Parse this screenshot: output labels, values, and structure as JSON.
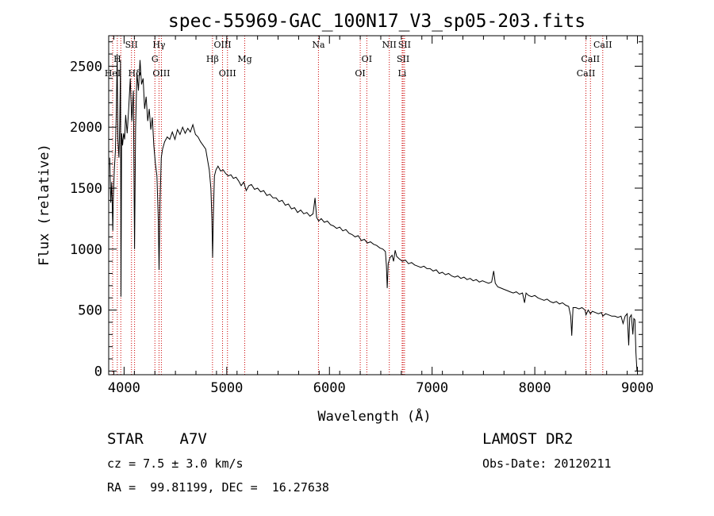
{
  "chart_data": {
    "type": "line",
    "title": "spec-55969-GAC_100N17_V3_sp05-203.fits",
    "xlabel": "Wavelength (Å)",
    "ylabel": "Flux (relative)",
    "xlim": [
      3850,
      9050
    ],
    "ylim": [
      -30,
      2750
    ],
    "xticks": [
      4000,
      5000,
      6000,
      7000,
      8000,
      9000
    ],
    "yticks": [
      0,
      500,
      1000,
      1500,
      2000,
      2500
    ],
    "series_color": "#000000",
    "line_color": "#cc0000",
    "series": [
      {
        "points": [
          [
            3860,
            1750
          ],
          [
            3870,
            1380
          ],
          [
            3880,
            1550
          ],
          [
            3890,
            1150
          ],
          [
            3895,
            1400
          ],
          [
            3905,
            1650
          ],
          [
            3915,
            1800
          ],
          [
            3925,
            2150
          ],
          [
            3933,
            2600
          ],
          [
            3940,
            1900
          ],
          [
            3950,
            1750
          ],
          [
            3958,
            2050
          ],
          [
            3965,
            2550
          ],
          [
            3970,
            610
          ],
          [
            3976,
            1950
          ],
          [
            3985,
            1850
          ],
          [
            3995,
            1950
          ],
          [
            4005,
            1900
          ],
          [
            4015,
            2100
          ],
          [
            4030,
            1950
          ],
          [
            4045,
            2150
          ],
          [
            4060,
            2400
          ],
          [
            4075,
            2050
          ],
          [
            4090,
            2300
          ],
          [
            4102,
            1000
          ],
          [
            4112,
            2000
          ],
          [
            4125,
            2450
          ],
          [
            4140,
            2300
          ],
          [
            4155,
            2550
          ],
          [
            4170,
            2350
          ],
          [
            4185,
            2400
          ],
          [
            4200,
            2150
          ],
          [
            4215,
            2250
          ],
          [
            4230,
            2050
          ],
          [
            4245,
            2150
          ],
          [
            4260,
            1980
          ],
          [
            4275,
            2080
          ],
          [
            4290,
            1850
          ],
          [
            4305,
            1700
          ],
          [
            4320,
            1600
          ],
          [
            4333,
            1250
          ],
          [
            4341,
            830
          ],
          [
            4350,
            1380
          ],
          [
            4362,
            1750
          ],
          [
            4375,
            1820
          ],
          [
            4395,
            1880
          ],
          [
            4420,
            1920
          ],
          [
            4445,
            1900
          ],
          [
            4470,
            1960
          ],
          [
            4495,
            1900
          ],
          [
            4520,
            1980
          ],
          [
            4545,
            1940
          ],
          [
            4570,
            2000
          ],
          [
            4595,
            1950
          ],
          [
            4620,
            1990
          ],
          [
            4645,
            1960
          ],
          [
            4670,
            2020
          ],
          [
            4695,
            1940
          ],
          [
            4720,
            1920
          ],
          [
            4745,
            1880
          ],
          [
            4770,
            1850
          ],
          [
            4795,
            1820
          ],
          [
            4815,
            1720
          ],
          [
            4830,
            1650
          ],
          [
            4845,
            1500
          ],
          [
            4855,
            1250
          ],
          [
            4862,
            930
          ],
          [
            4870,
            1300
          ],
          [
            4880,
            1600
          ],
          [
            4895,
            1650
          ],
          [
            4915,
            1680
          ],
          [
            4940,
            1640
          ],
          [
            4965,
            1650
          ],
          [
            4990,
            1620
          ],
          [
            5015,
            1600
          ],
          [
            5040,
            1610
          ],
          [
            5065,
            1580
          ],
          [
            5090,
            1590
          ],
          [
            5115,
            1560
          ],
          [
            5140,
            1520
          ],
          [
            5165,
            1550
          ],
          [
            5190,
            1480
          ],
          [
            5215,
            1520
          ],
          [
            5240,
            1530
          ],
          [
            5270,
            1490
          ],
          [
            5300,
            1500
          ],
          [
            5330,
            1470
          ],
          [
            5360,
            1480
          ],
          [
            5390,
            1440
          ],
          [
            5420,
            1450
          ],
          [
            5450,
            1420
          ],
          [
            5480,
            1420
          ],
          [
            5510,
            1390
          ],
          [
            5540,
            1400
          ],
          [
            5570,
            1360
          ],
          [
            5600,
            1370
          ],
          [
            5630,
            1330
          ],
          [
            5660,
            1340
          ],
          [
            5690,
            1300
          ],
          [
            5720,
            1320
          ],
          [
            5750,
            1290
          ],
          [
            5780,
            1300
          ],
          [
            5810,
            1270
          ],
          [
            5840,
            1290
          ],
          [
            5860,
            1420
          ],
          [
            5875,
            1260
          ],
          [
            5895,
            1230
          ],
          [
            5920,
            1250
          ],
          [
            5950,
            1220
          ],
          [
            5980,
            1230
          ],
          [
            6010,
            1200
          ],
          [
            6040,
            1190
          ],
          [
            6070,
            1170
          ],
          [
            6100,
            1180
          ],
          [
            6130,
            1150
          ],
          [
            6160,
            1160
          ],
          [
            6190,
            1130
          ],
          [
            6220,
            1120
          ],
          [
            6250,
            1100
          ],
          [
            6280,
            1110
          ],
          [
            6310,
            1070
          ],
          [
            6340,
            1080
          ],
          [
            6370,
            1050
          ],
          [
            6400,
            1060
          ],
          [
            6430,
            1040
          ],
          [
            6460,
            1030
          ],
          [
            6490,
            1010
          ],
          [
            6520,
            1000
          ],
          [
            6545,
            980
          ],
          [
            6555,
            860
          ],
          [
            6563,
            680
          ],
          [
            6572,
            880
          ],
          [
            6590,
            930
          ],
          [
            6610,
            950
          ],
          [
            6625,
            900
          ],
          [
            6640,
            990
          ],
          [
            6655,
            940
          ],
          [
            6680,
            920
          ],
          [
            6710,
            900
          ],
          [
            6740,
            910
          ],
          [
            6770,
            880
          ],
          [
            6800,
            890
          ],
          [
            6830,
            870
          ],
          [
            6860,
            860
          ],
          [
            6890,
            850
          ],
          [
            6920,
            860
          ],
          [
            6950,
            840
          ],
          [
            6980,
            840
          ],
          [
            7010,
            820
          ],
          [
            7040,
            830
          ],
          [
            7070,
            800
          ],
          [
            7100,
            810
          ],
          [
            7130,
            790
          ],
          [
            7160,
            800
          ],
          [
            7190,
            780
          ],
          [
            7220,
            770
          ],
          [
            7250,
            780
          ],
          [
            7280,
            760
          ],
          [
            7310,
            770
          ],
          [
            7340,
            750
          ],
          [
            7370,
            760
          ],
          [
            7400,
            740
          ],
          [
            7430,
            750
          ],
          [
            7460,
            730
          ],
          [
            7490,
            740
          ],
          [
            7520,
            730
          ],
          [
            7550,
            720
          ],
          [
            7580,
            730
          ],
          [
            7600,
            820
          ],
          [
            7615,
            720
          ],
          [
            7640,
            690
          ],
          [
            7670,
            680
          ],
          [
            7700,
            670
          ],
          [
            7730,
            660
          ],
          [
            7760,
            650
          ],
          [
            7790,
            640
          ],
          [
            7820,
            650
          ],
          [
            7850,
            630
          ],
          [
            7880,
            640
          ],
          [
            7900,
            560
          ],
          [
            7915,
            640
          ],
          [
            7940,
            620
          ],
          [
            7970,
            610
          ],
          [
            8000,
            620
          ],
          [
            8030,
            600
          ],
          [
            8060,
            590
          ],
          [
            8090,
            580
          ],
          [
            8120,
            590
          ],
          [
            8150,
            570
          ],
          [
            8180,
            560
          ],
          [
            8210,
            570
          ],
          [
            8240,
            550
          ],
          [
            8270,
            560
          ],
          [
            8300,
            540
          ],
          [
            8330,
            530
          ],
          [
            8350,
            450
          ],
          [
            8360,
            290
          ],
          [
            8372,
            520
          ],
          [
            8400,
            520
          ],
          [
            8430,
            510
          ],
          [
            8460,
            520
          ],
          [
            8490,
            500
          ],
          [
            8498,
            460
          ],
          [
            8520,
            500
          ],
          [
            8542,
            470
          ],
          [
            8560,
            490
          ],
          [
            8590,
            480
          ],
          [
            8620,
            470
          ],
          [
            8650,
            480
          ],
          [
            8662,
            450
          ],
          [
            8690,
            470
          ],
          [
            8720,
            460
          ],
          [
            8750,
            450
          ],
          [
            8780,
            450
          ],
          [
            8810,
            440
          ],
          [
            8840,
            450
          ],
          [
            8860,
            390
          ],
          [
            8880,
            450
          ],
          [
            8900,
            470
          ],
          [
            8915,
            210
          ],
          [
            8925,
            440
          ],
          [
            8940,
            460
          ],
          [
            8955,
            300
          ],
          [
            8965,
            430
          ],
          [
            8975,
            420
          ],
          [
            8985,
            150
          ],
          [
            8995,
            0
          ]
        ]
      }
    ],
    "lines": [
      {
        "x": 3889,
        "label": "HeI",
        "row": 3
      },
      {
        "x": 3934,
        "label": "H",
        "row": 2
      },
      {
        "x": 3968,
        "label": "",
        "row": 0
      },
      {
        "x": 4072,
        "label": "SII",
        "row": 1
      },
      {
        "x": 4102,
        "label": "Hδ",
        "row": 3
      },
      {
        "x": 4300,
        "label": "G",
        "row": 2
      },
      {
        "x": 4340,
        "label": "Hγ",
        "row": 1
      },
      {
        "x": 4363,
        "label": "OIII",
        "row": 3
      },
      {
        "x": 4861,
        "label": "Hβ",
        "row": 2
      },
      {
        "x": 4959,
        "label": "OIII",
        "row": 1
      },
      {
        "x": 5007,
        "label": "OIII",
        "row": 3
      },
      {
        "x": 5175,
        "label": "Mg",
        "row": 2
      },
      {
        "x": 5893,
        "label": "Na",
        "row": 1
      },
      {
        "x": 6300,
        "label": "OI",
        "row": 3
      },
      {
        "x": 6364,
        "label": "OI",
        "row": 2
      },
      {
        "x": 6583,
        "label": "NII",
        "row": 1
      },
      {
        "x": 6708,
        "label": "Li",
        "row": 3
      },
      {
        "x": 6717,
        "label": "SII",
        "row": 2
      },
      {
        "x": 6731,
        "label": "SII",
        "row": 1
      },
      {
        "x": 8498,
        "label": "CaII",
        "row": 3
      },
      {
        "x": 8542,
        "label": "CaII",
        "row": 2
      },
      {
        "x": 8662,
        "label": "CaII",
        "row": 1
      }
    ]
  },
  "footer": {
    "star_type": "STAR    A7V",
    "survey": "LAMOST DR2",
    "cz": "cz = 7.5 ± 3.0 km/s",
    "obs_date": "Obs-Date: 20120211",
    "radec": "RA =  99.81199, DEC =  16.27638"
  }
}
